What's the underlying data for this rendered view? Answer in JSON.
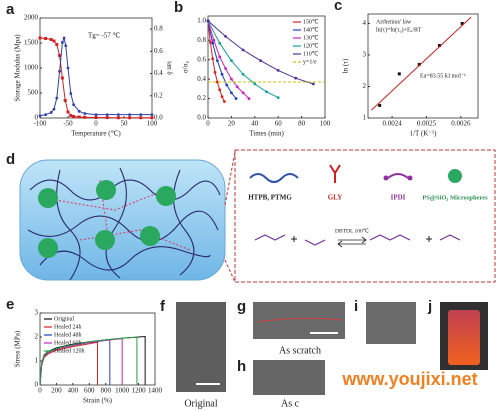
{
  "chart_data": [
    {
      "type": "line",
      "label": "a",
      "xlabel": "Temperature (℃)",
      "ylabel": "Storage Modulus (Mpa)",
      "y2label": "tan δ",
      "annotation": "Tg= -57 ℃",
      "xlim": [
        -100,
        100
      ],
      "xticks": [
        -100,
        -50,
        0,
        50,
        100
      ],
      "ylim": [
        0,
        2000
      ],
      "yticks": [
        0,
        500,
        1000,
        1500,
        2000
      ],
      "y2lim": [
        0,
        0.9
      ],
      "y2ticks": [
        {
          "value": 0,
          "label": "0.0"
        },
        0.2,
        0.4,
        0.6,
        0.8
      ],
      "series": [
        {
          "color": "#d42020",
          "marker": "square",
          "x": [
            -100,
            -90,
            -80,
            -75,
            -70,
            -65,
            -60,
            -55,
            -50,
            -45,
            -40,
            -30,
            -20,
            0,
            20,
            40,
            60,
            80,
            100
          ],
          "values": [
            1600,
            1590,
            1570,
            1540,
            1470,
            1250,
            800,
            350,
            120,
            50,
            30,
            20,
            15,
            10,
            8,
            6,
            5,
            5,
            4
          ]
        },
        {
          "color": "#3040b0",
          "marker": "circle",
          "axis": "y2",
          "x": [
            -100,
            -90,
            -80,
            -75,
            -70,
            -65,
            -60,
            -57,
            -54,
            -50,
            -45,
            -40,
            -30,
            -20,
            0,
            20,
            40,
            60,
            80,
            100
          ],
          "values": [
            0.02,
            0.03,
            0.05,
            0.08,
            0.18,
            0.42,
            0.68,
            0.72,
            0.65,
            0.45,
            0.22,
            0.12,
            0.06,
            0.04,
            0.03,
            0.03,
            0.03,
            0.03,
            0.03,
            0.03
          ]
        }
      ]
    },
    {
      "type": "line",
      "label": "b",
      "xlabel": "Times (min)",
      "ylabel": "σ/σ₀",
      "legend": "upper right",
      "xlim": [
        0,
        100
      ],
      "xticks": [
        0,
        20,
        40,
        60,
        80,
        100
      ],
      "ylim": [
        0,
        1.05
      ],
      "yticks": [
        {
          "value": 0,
          "label": "0.0"
        },
        0.2,
        0.4,
        0.6,
        0.8,
        {
          "value": 1,
          "label": "1.0"
        }
      ],
      "series": [
        {
          "name": "150℃",
          "color": "#e02020",
          "marker": "circle",
          "x": [
            0,
            2,
            4,
            6,
            8,
            10,
            12,
            14
          ],
          "values": [
            1,
            0.78,
            0.61,
            0.47,
            0.37,
            0.29,
            0.22,
            0.17
          ]
        },
        {
          "name": "140℃",
          "color": "#2040d0",
          "marker": "circle",
          "x": [
            0,
            4,
            8,
            12,
            16,
            20,
            24
          ],
          "values": [
            1,
            0.77,
            0.59,
            0.45,
            0.34,
            0.26,
            0.2
          ]
        },
        {
          "name": "130℃",
          "color": "#d020c0",
          "marker": "circle",
          "x": [
            0,
            5,
            10,
            15,
            20,
            25,
            30,
            35
          ],
          "values": [
            1,
            0.8,
            0.63,
            0.51,
            0.4,
            0.32,
            0.26,
            0.2
          ]
        },
        {
          "name": "120℃",
          "color": "#10a0a0",
          "marker": "circle",
          "x": [
            0,
            10,
            20,
            30,
            40,
            50,
            60
          ],
          "values": [
            1,
            0.77,
            0.59,
            0.45,
            0.35,
            0.27,
            0.21
          ]
        },
        {
          "name": "110℃",
          "color": "#5030a0",
          "marker": "circle",
          "x": [
            0,
            15,
            30,
            45,
            60,
            75,
            90
          ],
          "values": [
            1,
            0.84,
            0.7,
            0.59,
            0.49,
            0.41,
            0.35
          ]
        },
        {
          "name": "y=1/e",
          "color": "#d0c000",
          "dash": true,
          "x": [
            0,
            100
          ],
          "values": [
            0.37,
            0.37
          ]
        }
      ]
    },
    {
      "type": "scatter",
      "label": "c",
      "xlabel": "1/T (K⁻¹)",
      "ylabel": "ln (τ)",
      "annotations": [
        "Arrhenius' law",
        "ln(τ)=ln(τ₀)+Eₐ/RT",
        "Ea=83.55 kJ mol⁻¹"
      ],
      "xlim": [
        0.00233,
        0.00265
      ],
      "xticks": [
        0.0024,
        0.0025,
        0.0026
      ],
      "ylim": [
        1,
        4.3
      ],
      "yticks": [
        1,
        2,
        3,
        4
      ],
      "series": [
        {
          "color": "#111",
          "marker": "square",
          "x": [
            0.002364,
            0.002421,
            0.002479,
            0.002538,
            0.002604
          ],
          "values": [
            1.4,
            2.4,
            2.7,
            3.3,
            4.0
          ]
        },
        {
          "color": "#d42020",
          "line": true,
          "x": [
            0.00234,
            0.00263
          ],
          "values": [
            1.25,
            4.2
          ]
        }
      ]
    },
    {
      "type": "line",
      "label": "e",
      "xlabel": "Strain (%)",
      "ylabel": "Stress (MPa)",
      "legend": "upper left",
      "xlim": [
        0,
        1400
      ],
      "xticks": [
        0,
        200,
        400,
        600,
        800,
        1000,
        1200,
        1400
      ],
      "ylim": [
        0,
        3
      ],
      "yticks": [
        0,
        1,
        2,
        3
      ],
      "series": [
        {
          "name": "Original",
          "color": "#111",
          "x": [
            0,
            20,
            50,
            100,
            200,
            400,
            600,
            800,
            1000,
            1200,
            1280,
            1280
          ],
          "values": [
            0,
            0.9,
            1.25,
            1.4,
            1.55,
            1.7,
            1.8,
            1.88,
            1.95,
            2.0,
            2.02,
            0
          ]
        },
        {
          "name": "Healed 24h",
          "color": "#d42020",
          "x": [
            0,
            20,
            50,
            100,
            200,
            400,
            600,
            700,
            700
          ],
          "values": [
            0,
            0.8,
            1.15,
            1.3,
            1.45,
            1.6,
            1.72,
            1.78,
            0
          ]
        },
        {
          "name": "Healed 48h",
          "color": "#2040d0",
          "x": [
            0,
            20,
            50,
            100,
            200,
            400,
            600,
            850,
            850
          ],
          "values": [
            0,
            0.85,
            1.2,
            1.35,
            1.5,
            1.65,
            1.77,
            1.88,
            0
          ]
        },
        {
          "name": "Healed 60h",
          "color": "#d020c0",
          "x": [
            0,
            20,
            50,
            100,
            200,
            400,
            600,
            800,
            1000,
            1000
          ],
          "values": [
            0,
            0.85,
            1.2,
            1.35,
            1.5,
            1.66,
            1.78,
            1.86,
            1.93,
            0
          ]
        },
        {
          "name": "Healed 120h",
          "color": "#20a040",
          "x": [
            0,
            20,
            50,
            100,
            200,
            400,
            600,
            800,
            1000,
            1180,
            1180
          ],
          "values": [
            0,
            0.88,
            1.22,
            1.38,
            1.52,
            1.68,
            1.8,
            1.88,
            1.95,
            1.99,
            0
          ]
        }
      ]
    }
  ],
  "diagram": {
    "label": "d",
    "components": [
      "HTPB, PTMG",
      "GLY",
      "IPDI",
      "PS@SiO₂ Microspheres"
    ],
    "catalyst": "DBTDL 100℃"
  },
  "images": [
    {
      "label": "f",
      "caption": "Original"
    },
    {
      "label": "g",
      "caption": "As scratch"
    },
    {
      "label": "h",
      "caption": "As c"
    },
    {
      "label": "i"
    },
    {
      "label": "j"
    }
  ],
  "watermark": "www.youjixi.net"
}
